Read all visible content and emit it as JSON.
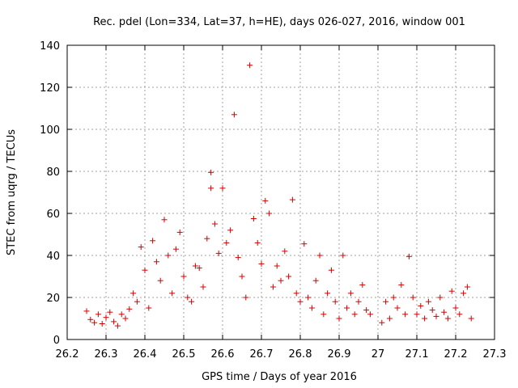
{
  "chart_data": {
    "type": "scatter",
    "title": "Rec. pdel (Lon=334, Lat=37, h=HE), days 026-027, 2016, window 001",
    "xlabel": "GPS time / Days of year 2016",
    "ylabel": "STEC from uqrg / TECUs",
    "xlim": [
      26.2,
      27.3
    ],
    "ylim": [
      0,
      140
    ],
    "xticks": [
      "26.2",
      "26.3",
      "26.4",
      "26.5",
      "26.6",
      "26.7",
      "26.8",
      "26.9",
      "27",
      "27.1",
      "27.2",
      "27.3"
    ],
    "yticks": [
      "0",
      "20",
      "40",
      "60",
      "80",
      "100",
      "120",
      "140"
    ],
    "grid": true,
    "marker": "+",
    "marker_color": "#d40000",
    "series": [
      {
        "name": "STEC",
        "points": [
          [
            26.25,
            13.5
          ],
          [
            26.26,
            9.5
          ],
          [
            26.27,
            8.0
          ],
          [
            26.28,
            12.0
          ],
          [
            26.29,
            7.5
          ],
          [
            26.3,
            10.5
          ],
          [
            26.31,
            13.0
          ],
          [
            26.32,
            8.5
          ],
          [
            26.33,
            6.5
          ],
          [
            26.34,
            12.0
          ],
          [
            26.35,
            10.0
          ],
          [
            26.36,
            14.5
          ],
          [
            26.37,
            22.0
          ],
          [
            26.38,
            18.0
          ],
          [
            26.39,
            44.0
          ],
          [
            26.4,
            33.0
          ],
          [
            26.41,
            15.0
          ],
          [
            26.42,
            47.0
          ],
          [
            26.43,
            37.0
          ],
          [
            26.44,
            28.0
          ],
          [
            26.45,
            57.0
          ],
          [
            26.46,
            40.0
          ],
          [
            26.47,
            22.0
          ],
          [
            26.48,
            43.0
          ],
          [
            26.49,
            51.0
          ],
          [
            26.5,
            30.0
          ],
          [
            26.51,
            20.0
          ],
          [
            26.52,
            18.0
          ],
          [
            26.53,
            35.0
          ],
          [
            26.54,
            34.0
          ],
          [
            26.55,
            25.0
          ],
          [
            26.56,
            48.0
          ],
          [
            26.57,
            79.5
          ],
          [
            26.57,
            72.0
          ],
          [
            26.58,
            55.0
          ],
          [
            26.59,
            41.0
          ],
          [
            26.6,
            72.0
          ],
          [
            26.61,
            46.0
          ],
          [
            26.62,
            52.0
          ],
          [
            26.63,
            107.0
          ],
          [
            26.64,
            39.0
          ],
          [
            26.65,
            30.0
          ],
          [
            26.66,
            20.0
          ],
          [
            26.67,
            130.5
          ],
          [
            26.68,
            57.5
          ],
          [
            26.69,
            46.0
          ],
          [
            26.7,
            36.0
          ],
          [
            26.71,
            66.0
          ],
          [
            26.72,
            60.0
          ],
          [
            26.73,
            25.0
          ],
          [
            26.74,
            35.0
          ],
          [
            26.75,
            28.0
          ],
          [
            26.76,
            42.0
          ],
          [
            26.77,
            30.0
          ],
          [
            26.78,
            66.5
          ],
          [
            26.79,
            22.0
          ],
          [
            26.8,
            18.0
          ],
          [
            26.81,
            45.5
          ],
          [
            26.82,
            20.0
          ],
          [
            26.83,
            15.0
          ],
          [
            26.84,
            28.0
          ],
          [
            26.85,
            40.0
          ],
          [
            26.86,
            12.0
          ],
          [
            26.87,
            22.0
          ],
          [
            26.88,
            33.0
          ],
          [
            26.89,
            18.0
          ],
          [
            26.9,
            10.0
          ],
          [
            26.91,
            40.0
          ],
          [
            26.92,
            15.0
          ],
          [
            26.93,
            22.0
          ],
          [
            26.94,
            12.0
          ],
          [
            26.95,
            18.0
          ],
          [
            26.96,
            26.0
          ],
          [
            26.97,
            14.0
          ],
          [
            26.98,
            12.0
          ],
          [
            27.01,
            8.0
          ],
          [
            27.02,
            18.0
          ],
          [
            27.03,
            10.0
          ],
          [
            27.04,
            20.0
          ],
          [
            27.05,
            15.0
          ],
          [
            27.06,
            26.0
          ],
          [
            27.07,
            12.0
          ],
          [
            27.08,
            39.5
          ],
          [
            27.09,
            20.0
          ],
          [
            27.1,
            12.0
          ],
          [
            27.11,
            16.0
          ],
          [
            27.12,
            10.0
          ],
          [
            27.13,
            18.0
          ],
          [
            27.14,
            14.0
          ],
          [
            27.15,
            11.0
          ],
          [
            27.16,
            20.0
          ],
          [
            27.17,
            13.0
          ],
          [
            27.18,
            10.0
          ],
          [
            27.19,
            23.0
          ],
          [
            27.2,
            15.0
          ],
          [
            27.21,
            12.0
          ],
          [
            27.22,
            22.0
          ],
          [
            27.23,
            25.0
          ],
          [
            27.24,
            10.0
          ]
        ]
      }
    ]
  }
}
